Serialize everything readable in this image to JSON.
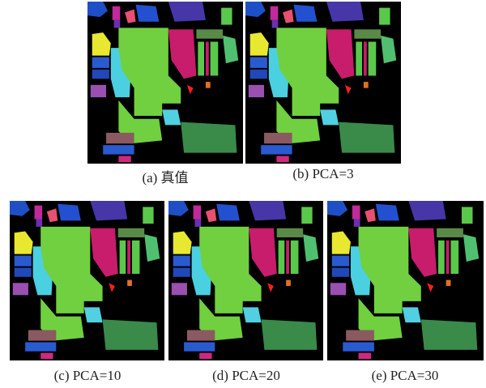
{
  "panels": [
    {
      "caption": "(a) 真值"
    },
    {
      "caption": "(b) PCA=3"
    },
    {
      "caption": "(c) PCA=10"
    },
    {
      "caption": "(d) PCA=20"
    },
    {
      "caption": "(e) PCA=30"
    }
  ]
}
